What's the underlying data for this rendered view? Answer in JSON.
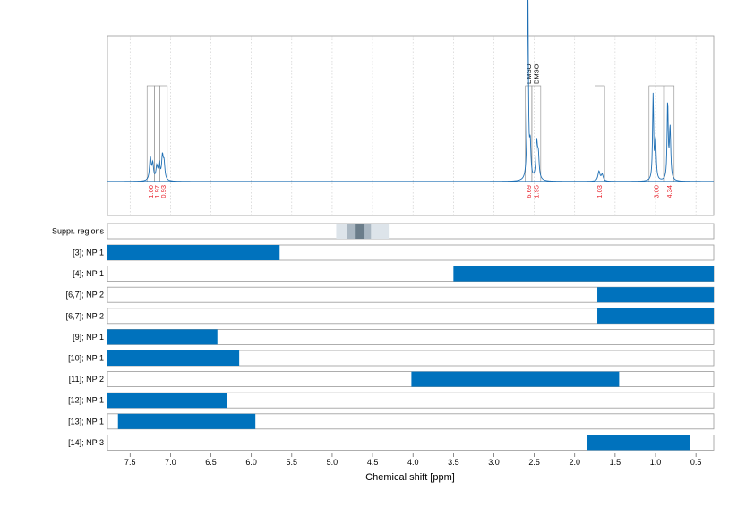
{
  "chart_data": {
    "type": "nmr-spectrum-with-range-bars",
    "xlabel": "Chemical shift [ppm]",
    "xlim": [
      7.78,
      0.28
    ],
    "xticks": [
      "7.5",
      "7.0",
      "6.5",
      "6.0",
      "5.5",
      "5.0",
      "4.5",
      "4.0",
      "3.5",
      "3.0",
      "2.5",
      "2.0",
      "1.5",
      "1.0",
      "0.5"
    ],
    "xtick_values": [
      7.5,
      7.0,
      6.5,
      6.0,
      5.5,
      5.0,
      4.5,
      4.0,
      3.5,
      3.0,
      2.5,
      2.0,
      1.5,
      1.0,
      0.5
    ],
    "spectrum": {
      "peaks": [
        {
          "ppm": 7.25,
          "height": 0.07,
          "width": 0.012
        },
        {
          "ppm": 7.22,
          "height": 0.05,
          "width": 0.012
        },
        {
          "ppm": 7.17,
          "height": 0.04,
          "width": 0.012
        },
        {
          "ppm": 7.14,
          "height": 0.05,
          "width": 0.012
        },
        {
          "ppm": 7.1,
          "height": 0.07,
          "width": 0.012
        },
        {
          "ppm": 7.08,
          "height": 0.05,
          "width": 0.012
        },
        {
          "ppm": 2.58,
          "height": 0.62,
          "width": 0.008
        },
        {
          "ppm": 2.55,
          "height": 0.1,
          "width": 0.01
        },
        {
          "ppm": 2.47,
          "height": 0.11,
          "width": 0.012
        },
        {
          "ppm": 2.45,
          "height": 0.07,
          "width": 0.012
        },
        {
          "ppm": 1.7,
          "height": 0.03,
          "width": 0.015
        },
        {
          "ppm": 1.66,
          "height": 0.02,
          "width": 0.015
        },
        {
          "ppm": 1.03,
          "height": 0.26,
          "width": 0.008
        },
        {
          "ppm": 1.0,
          "height": 0.12,
          "width": 0.01
        },
        {
          "ppm": 0.85,
          "height": 0.24,
          "width": 0.008
        },
        {
          "ppm": 0.82,
          "height": 0.16,
          "width": 0.01
        }
      ]
    },
    "integration_regions": [
      {
        "from": 7.29,
        "to": 7.2,
        "value": "1.00"
      },
      {
        "from": 7.2,
        "to": 7.13,
        "value": "1.97"
      },
      {
        "from": 7.13,
        "to": 7.04,
        "value": "0.93"
      },
      {
        "from": 2.61,
        "to": 2.53,
        "value": "6.69",
        "annotation": "DMSO"
      },
      {
        "from": 2.53,
        "to": 2.42,
        "value": "1.95",
        "annotation": "DMSO"
      },
      {
        "from": 1.75,
        "to": 1.63,
        "value": "1.03"
      },
      {
        "from": 1.08,
        "to": 0.9,
        "value": "3.00"
      },
      {
        "from": 0.89,
        "to": 0.77,
        "value": "4.34"
      }
    ],
    "suppressed_regions": {
      "label": "Suppr. regions",
      "bands": [
        {
          "from": 4.95,
          "to": 4.3,
          "shade": "#dde4ea"
        },
        {
          "from": 4.82,
          "to": 4.52,
          "shade": "#aab7c2"
        },
        {
          "from": 4.72,
          "to": 4.6,
          "shade": "#6b7d8a"
        }
      ]
    },
    "rows": [
      {
        "label": "[3]; NP 1",
        "from": 7.78,
        "to": 5.65
      },
      {
        "label": "[4]; NP 1",
        "from": 3.5,
        "to": 0.28
      },
      {
        "label": "[6,7]; NP 2",
        "from": 1.72,
        "to": 0.28
      },
      {
        "label": "[6,7]; NP 2",
        "from": 1.72,
        "to": 0.28
      },
      {
        "label": "[9]; NP 1",
        "from": 7.78,
        "to": 6.42
      },
      {
        "label": "[10]; NP 1",
        "from": 7.78,
        "to": 6.15
      },
      {
        "label": "[11]; NP 2",
        "from": 4.02,
        "to": 1.45
      },
      {
        "label": "[12]; NP 1",
        "from": 7.78,
        "to": 6.3
      },
      {
        "label": "[13]; NP 1",
        "from": 7.65,
        "to": 5.95
      },
      {
        "label": "[14]; NP 3",
        "from": 1.85,
        "to": 0.57
      }
    ]
  },
  "colors": {
    "spectrum": "#1f6fb4",
    "bar": "#0072bd",
    "integral_text": "#e8202a",
    "frame": "#999999",
    "grid": "#c8c8c8"
  }
}
